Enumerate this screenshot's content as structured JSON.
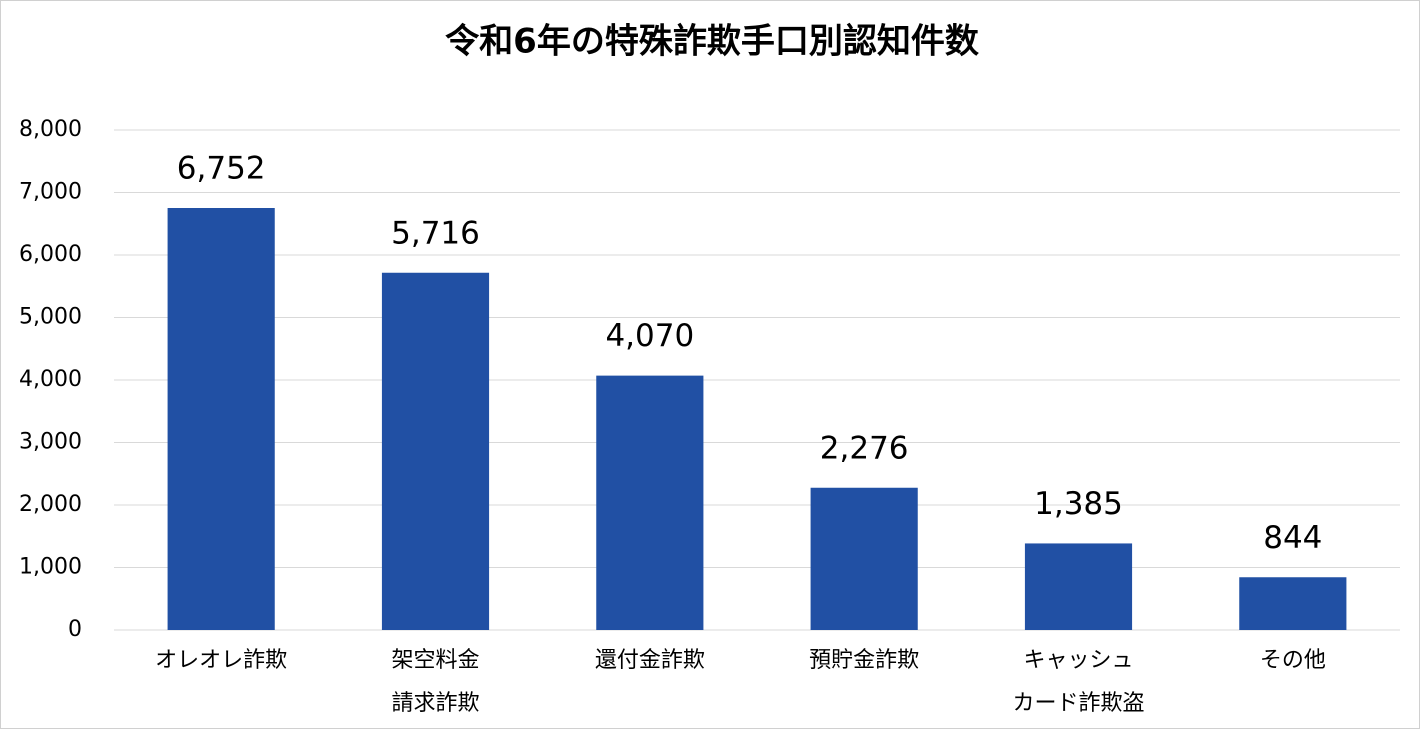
{
  "chart_data": {
    "type": "bar",
    "title": "令和6年の特殊詐欺手口別認知件数",
    "categories": [
      "オレオレ詐欺",
      "架空料金\n請求詐欺",
      "還付金詐欺",
      "預貯金詐欺",
      "キャッシュ\nカード詐欺盗",
      "その他"
    ],
    "values": [
      6752,
      5716,
      4070,
      2276,
      1385,
      844
    ],
    "value_labels": [
      "6,752",
      "5,716",
      "4,070",
      "2,276",
      "1,385",
      "844"
    ],
    "color": "#2150a4",
    "ylim": [
      0,
      8000
    ],
    "yticks": [
      0,
      {
        "value": 1000,
        "label": "1,000"
      },
      {
        "value": 2000,
        "label": "2,000"
      },
      {
        "value": 3000,
        "label": "3,000"
      },
      {
        "value": 4000,
        "label": "4,000"
      },
      {
        "value": 5000,
        "label": "5,000"
      },
      {
        "value": 6000,
        "label": "6,000"
      },
      {
        "value": 7000,
        "label": "7,000"
      },
      {
        "value": 8000,
        "label": "8,000"
      }
    ],
    "grid": true
  }
}
